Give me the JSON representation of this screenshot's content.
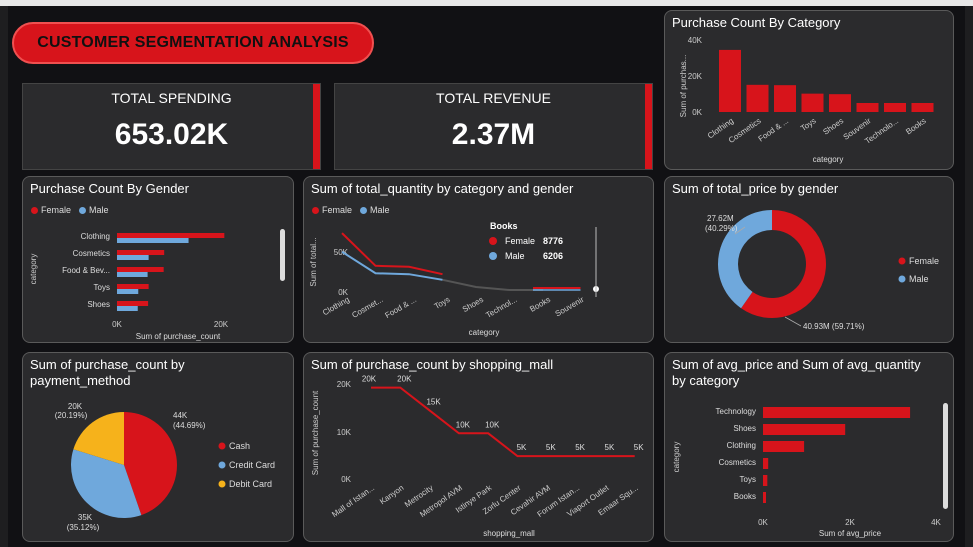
{
  "colors": {
    "red": "#d7141b",
    "blue": "#6fa8dc",
    "yellow": "#f6b21b"
  },
  "title": "CUSTOMER SEGMENTATION ANALYSIS",
  "kpis": {
    "spending": {
      "label": "TOTAL SPENDING",
      "value": "653.02K"
    },
    "revenue": {
      "label": "TOTAL REVENUE",
      "value": "2.37M"
    }
  },
  "legend": {
    "female": "Female",
    "male": "Male"
  },
  "pc_category": {
    "title": "Purchase Count By Category",
    "ylabel": "Sum of purchas...",
    "xlabel": "category",
    "yticks": [
      "40K",
      "20K",
      "0K"
    ],
    "chart_data": {
      "type": "bar",
      "categories": [
        "Clothing",
        "Cosmetics",
        "Food & ...",
        "Toys",
        "Shoes",
        "Souvenir",
        "Technolo...",
        "Books"
      ],
      "values": [
        34500,
        15100,
        14900,
        10200,
        9900,
        5000,
        5000,
        5000
      ],
      "ylim": [
        0,
        40000
      ]
    }
  },
  "pc_gender": {
    "title": "Purchase Count By Gender",
    "ylabel": "category",
    "xlabel": "Sum of purchase_count",
    "xticks": [
      "0K",
      "20K"
    ],
    "chart_data": {
      "type": "bar",
      "categories": [
        "Clothing",
        "Cosmetics",
        "Food & Bev...",
        "Toys",
        "Shoes"
      ],
      "series": [
        {
          "name": "Female",
          "values": [
            20700,
            9100,
            9000,
            6100,
            6000
          ]
        },
        {
          "name": "Male",
          "values": [
            13800,
            6100,
            5900,
            4100,
            4000
          ]
        }
      ],
      "xlim": [
        0,
        27000
      ]
    }
  },
  "qty": {
    "title": "Sum of total_quantity by category and gender",
    "ylabel": "Sum of total...",
    "xlabel": "category",
    "yticks": [
      "50K",
      "0K"
    ],
    "tooltip": {
      "title": "Books",
      "female_label": "Female",
      "female_value": "8776",
      "male_label": "Male",
      "male_value": "6206"
    },
    "chart_data": {
      "type": "line",
      "categories": [
        "Clothing",
        "Cosmet...",
        "Food & ...",
        "Toys",
        "Shoes",
        "Technol...",
        "Books",
        "Souvenir"
      ],
      "series": [
        {
          "name": "Female",
          "values": [
            62000,
            27000,
            26000,
            18000,
            null,
            null,
            8776,
            8700
          ]
        },
        {
          "name": "Male",
          "values": [
            42000,
            19000,
            18000,
            12000,
            null,
            null,
            6206,
            6100
          ]
        }
      ],
      "ylim": [
        0,
        75000
      ]
    }
  },
  "price_gender": {
    "title": "Sum of total_price by gender",
    "label_male": "27.62M\n(40.29%)",
    "label_male_1": "27.62M",
    "label_male_2": "(40.29%)",
    "label_female": "40.93M (59.71%)",
    "chart_data": {
      "type": "pie",
      "labels": [
        "Female",
        "Male"
      ],
      "values": [
        40.93,
        27.62
      ]
    }
  },
  "payment": {
    "title_1": "Sum of purchase_count by",
    "title_2": "payment_method",
    "labels": {
      "cash_1": "44K",
      "cash_2": "(44.69%)",
      "credit_1": "35K",
      "credit_2": "(35.12%)",
      "debit_1": "20K",
      "debit_2": "(20.19%)"
    },
    "chart_data": {
      "type": "pie",
      "labels": [
        "Cash",
        "Credit Card",
        "Debit Card"
      ],
      "values": [
        44.69,
        35.12,
        20.19
      ]
    }
  },
  "mall": {
    "title": "Sum of purchase_count by shopping_mall",
    "ylabel": "Sum of purchase_count",
    "xlabel": "shopping_mall",
    "yticks": [
      "20K",
      "10K",
      "0K"
    ],
    "point_labels": [
      "20K",
      "20K",
      "15K",
      "10K",
      "10K",
      "5K",
      "5K",
      "5K",
      "5K",
      "5K"
    ],
    "chart_data": {
      "type": "line",
      "categories": [
        "Mall of Istan...",
        "Kanyon",
        "Metrocity",
        "Metropol AVM",
        "Istinye Park",
        "Zorlu Center",
        "Cevahir AVM",
        "Forum Istan...",
        "Viaport Outlet",
        "Emaar Squ..."
      ],
      "values": [
        20000,
        20000,
        15000,
        10000,
        10000,
        5000,
        5000,
        5000,
        5000,
        5000
      ],
      "ylim": [
        0,
        21000
      ]
    }
  },
  "avg": {
    "title_1": "Sum of avg_price and Sum of avg_quantity",
    "title_2": "by category",
    "ylabel": "category",
    "xlabel": "Sum of avg_price",
    "xticks": [
      "0K",
      "2K",
      "4K"
    ],
    "chart_data": {
      "type": "bar",
      "categories": [
        "Technology",
        "Shoes",
        "Clothing",
        "Cosmetics",
        "Toys",
        "Books"
      ],
      "values": [
        3400,
        1900,
        950,
        120,
        100,
        60
      ],
      "xlim": [
        0,
        4300
      ]
    }
  }
}
